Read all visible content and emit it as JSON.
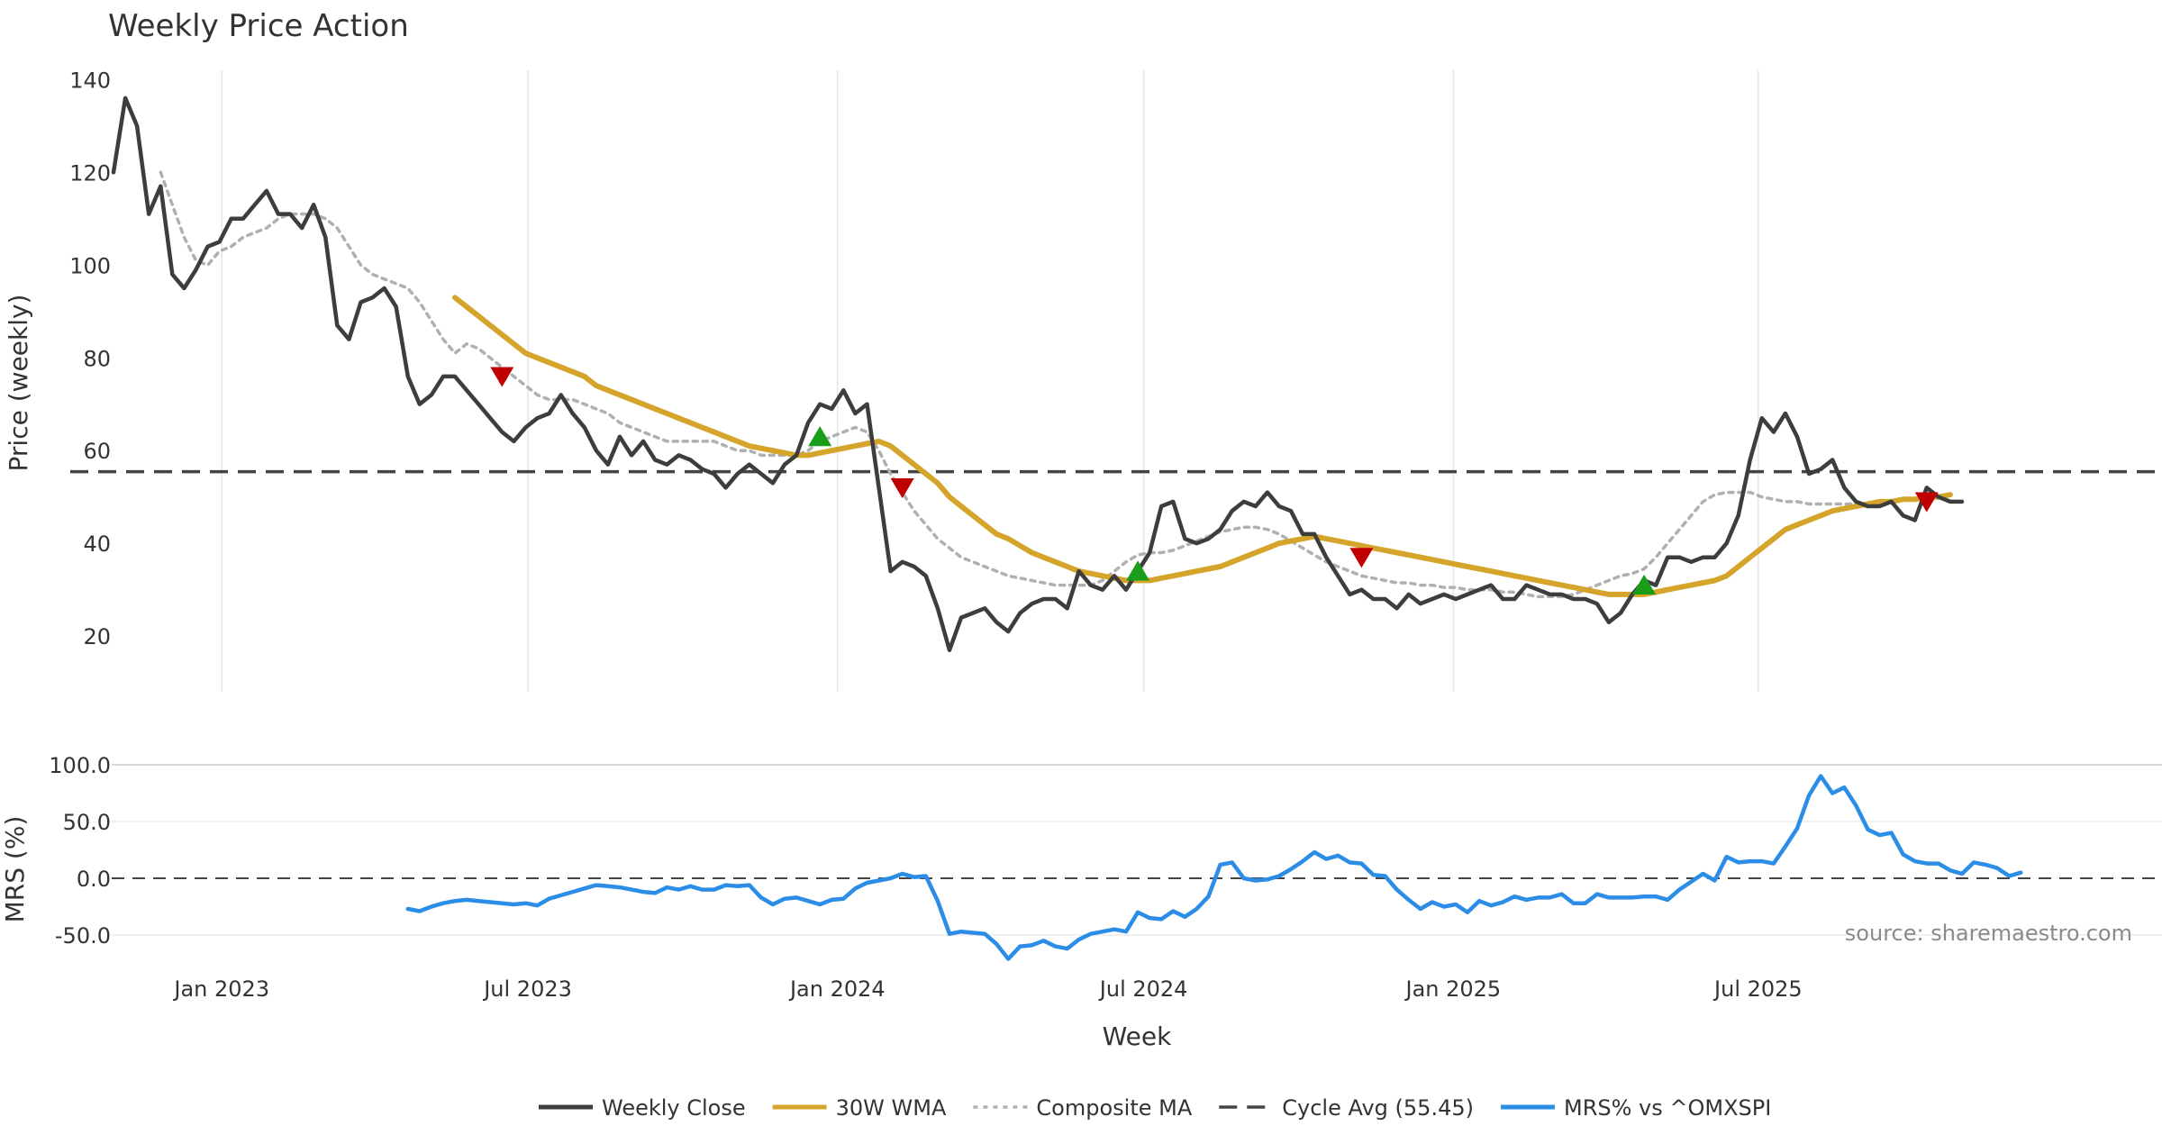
{
  "chart_data": {
    "type": "line",
    "title": "Weekly Price Action",
    "xlabel": "Week",
    "source": "source: sharemaestro.com",
    "x_ticks": [
      {
        "label": "Jan 2023",
        "week": 9.2
      },
      {
        "label": "Jul 2023",
        "week": 35.2
      },
      {
        "label": "Jan 2024",
        "week": 61.5
      },
      {
        "label": "Jul 2024",
        "week": 87.5
      },
      {
        "label": "Jan 2025",
        "week": 113.8
      },
      {
        "label": "Jul 2025",
        "week": 139.7
      }
    ],
    "price_panel": {
      "ylabel": "Price (weekly)",
      "ylim": [
        8,
        142
      ],
      "y_ticks": [
        20,
        40,
        60,
        80,
        100,
        120,
        140
      ],
      "y_tick_labels": [
        "20",
        "40",
        "60",
        "80",
        "100",
        "120",
        "140"
      ],
      "cycle_avg": 55.45,
      "series": [
        {
          "name": "Weekly Close",
          "color": "#3d3d3d",
          "start_week": 0,
          "values": [
            120,
            136,
            130,
            111,
            117,
            98,
            95,
            99,
            104,
            105,
            110,
            110,
            113,
            116,
            111,
            111,
            108,
            113,
            106,
            87,
            84,
            92,
            93,
            95,
            91,
            76,
            70,
            72,
            76,
            76,
            73,
            70,
            67,
            64,
            62,
            65,
            67,
            68,
            72,
            68,
            65,
            60,
            57,
            63,
            59,
            62,
            58,
            57,
            59,
            58,
            56,
            55,
            52,
            55,
            57,
            55,
            53,
            57,
            59,
            66,
            70,
            69,
            73,
            68,
            70,
            52,
            34,
            36,
            35,
            33,
            26,
            17,
            24,
            25,
            26,
            23,
            21,
            25,
            27,
            28,
            28,
            26,
            34,
            31,
            30,
            33,
            30,
            34,
            38,
            48,
            49,
            41,
            40,
            41,
            43,
            47,
            49,
            48,
            51,
            48,
            47,
            42,
            42,
            37,
            33,
            29,
            30,
            28,
            28,
            26,
            29,
            27,
            28,
            29,
            28,
            29,
            30,
            31,
            28,
            28,
            31,
            30,
            29,
            29,
            28,
            28,
            27,
            23,
            25,
            29,
            32,
            31,
            37,
            37,
            36,
            37,
            37,
            40,
            46,
            58,
            67,
            64,
            68,
            63,
            55,
            56,
            58,
            52,
            49,
            48,
            48,
            49,
            46,
            45,
            52,
            50,
            49,
            49
          ]
        },
        {
          "name": "30W WMA",
          "color": "#d4a52a",
          "start_week": 29,
          "values": [
            93,
            91,
            89,
            87,
            85,
            83,
            81,
            80,
            79,
            78,
            77,
            76,
            74,
            73,
            72,
            71,
            70,
            69,
            68,
            67,
            66,
            65,
            64,
            63,
            62,
            61,
            60.5,
            60,
            59.5,
            59,
            59,
            59.5,
            60,
            60.5,
            61,
            61.5,
            62,
            61,
            59,
            57,
            55,
            53,
            50,
            48,
            46,
            44,
            42,
            41,
            39.5,
            38,
            37,
            36,
            35,
            34,
            33.5,
            33,
            32.5,
            32,
            32,
            32,
            32.5,
            33,
            33.5,
            34,
            34.5,
            35,
            36,
            37,
            38,
            39,
            40,
            40.5,
            41,
            41.5,
            41,
            40.5,
            40,
            39.5,
            39,
            38.5,
            38,
            37.5,
            37,
            36.5,
            36,
            35.5,
            35,
            34.5,
            34,
            33.5,
            33,
            32.5,
            32,
            31.5,
            31,
            30.5,
            30,
            29.5,
            29,
            29,
            29,
            29,
            29.5,
            30,
            30.5,
            31,
            31.5,
            32,
            33,
            35,
            37,
            39,
            41,
            43,
            44,
            45,
            46,
            47,
            47.5,
            48,
            48.5,
            49,
            49,
            49.5,
            49.5,
            50,
            50,
            50.5
          ]
        },
        {
          "name": "Composite MA",
          "color": "#b0b0b0",
          "start_week": 4,
          "values": [
            120,
            113,
            106,
            101,
            100,
            103,
            104,
            106,
            107,
            108,
            110,
            111,
            111,
            111,
            110,
            108,
            104,
            100,
            98,
            97,
            96,
            95,
            92,
            88,
            84,
            81,
            83,
            82,
            80,
            78,
            76,
            74,
            72,
            71,
            71,
            71,
            70,
            69,
            68,
            66,
            65,
            64,
            63,
            62,
            62,
            62,
            62,
            62,
            61,
            60,
            60,
            59,
            59,
            59,
            59,
            60,
            62,
            63,
            64,
            65,
            64,
            60,
            55,
            51,
            47,
            44,
            41,
            39,
            37,
            36,
            35,
            34,
            33,
            32.5,
            32,
            31.5,
            31,
            31,
            31,
            31,
            32,
            34,
            36,
            37.5,
            38,
            38,
            38.5,
            39.5,
            40.5,
            41.5,
            42.5,
            43,
            43.5,
            43.5,
            43,
            42,
            40.5,
            39,
            37.5,
            36,
            35,
            34,
            33,
            32.5,
            32,
            31.5,
            31.5,
            31,
            31,
            30.5,
            30.5,
            30,
            30,
            30,
            29.5,
            29.5,
            29,
            28.5,
            28.5,
            28.5,
            29,
            30,
            31,
            32,
            33,
            33.5,
            34.5,
            37,
            40,
            43,
            46,
            49,
            50.5,
            51,
            51,
            51,
            50,
            49.5,
            49,
            49,
            48.5,
            48.5,
            48.5,
            48.5,
            48.5,
            48.5
          ]
        }
      ],
      "signals": [
        {
          "type": "sell",
          "week": 33,
          "value": 76,
          "color": "#c00000"
        },
        {
          "type": "buy",
          "week": 60,
          "value": 63,
          "color": "#1a9e1a"
        },
        {
          "type": "sell",
          "week": 67,
          "value": 52,
          "color": "#c00000"
        },
        {
          "type": "buy",
          "week": 87,
          "value": 34,
          "color": "#1a9e1a"
        },
        {
          "type": "sell",
          "week": 106,
          "value": 37,
          "color": "#c00000"
        },
        {
          "type": "buy",
          "week": 130,
          "value": 31,
          "color": "#1a9e1a"
        },
        {
          "type": "sell",
          "week": 154,
          "value": 49,
          "color": "#c00000"
        }
      ]
    },
    "mrs_panel": {
      "ylabel": "MRS (%)",
      "ylim": [
        -70,
        100
      ],
      "y_ticks": [
        -50,
        0,
        50,
        100
      ],
      "y_tick_labels": [
        "-50.0",
        "0.0",
        "50.0",
        "100.0"
      ],
      "series": {
        "name": "MRS% vs ^OMXSPI",
        "color": "#2b8de6",
        "start_week": 25,
        "values": [
          -27,
          -29,
          -25,
          -22,
          -20,
          -19,
          -20,
          -21,
          -22,
          -23,
          -22,
          -24,
          -18,
          -15,
          -12,
          -9,
          -6,
          -7,
          -8,
          -10,
          -12,
          -13,
          -8,
          -10,
          -7,
          -10,
          -10,
          -6,
          -7,
          -6,
          -17,
          -23,
          -18,
          -17,
          -20,
          -23,
          -19,
          -18,
          -9,
          -4,
          -2,
          0,
          4,
          1,
          2,
          -20,
          -49,
          -47,
          -48,
          -49,
          -58,
          -71,
          -60,
          -59,
          -55,
          -60,
          -62,
          -54,
          -49,
          -47,
          -45,
          -47,
          -30,
          -35,
          -36,
          -29,
          -34,
          -27,
          -16,
          12,
          14,
          0,
          -2,
          -1,
          2,
          8,
          15,
          23,
          17,
          20,
          14,
          13,
          3,
          2,
          -10,
          -19,
          -27,
          -21,
          -25,
          -23,
          -30,
          -20,
          -24,
          -21,
          -16,
          -19,
          -17,
          -17,
          -14,
          -22,
          -22,
          -14,
          -17,
          -17,
          -17,
          -16,
          -16,
          -19,
          -10,
          -3,
          4,
          -2,
          19,
          14,
          15,
          15,
          13,
          28,
          44,
          73,
          90,
          75,
          80,
          64,
          43,
          38,
          40,
          21,
          15,
          13,
          13,
          7,
          4,
          14,
          12,
          9,
          2,
          5
        ]
      }
    },
    "legend": [
      {
        "label": "Weekly Close",
        "style": "solid",
        "color": "#3d3d3d"
      },
      {
        "label": "30W WMA",
        "style": "solid",
        "color": "#d4a52a"
      },
      {
        "label": "Composite MA",
        "style": "dotted",
        "color": "#b0b0b0"
      },
      {
        "label": "Cycle Avg (55.45)",
        "style": "dashed",
        "color": "#444444"
      },
      {
        "label": "MRS% vs ^OMXSPI",
        "style": "solid",
        "color": "#2b8de6"
      }
    ]
  }
}
